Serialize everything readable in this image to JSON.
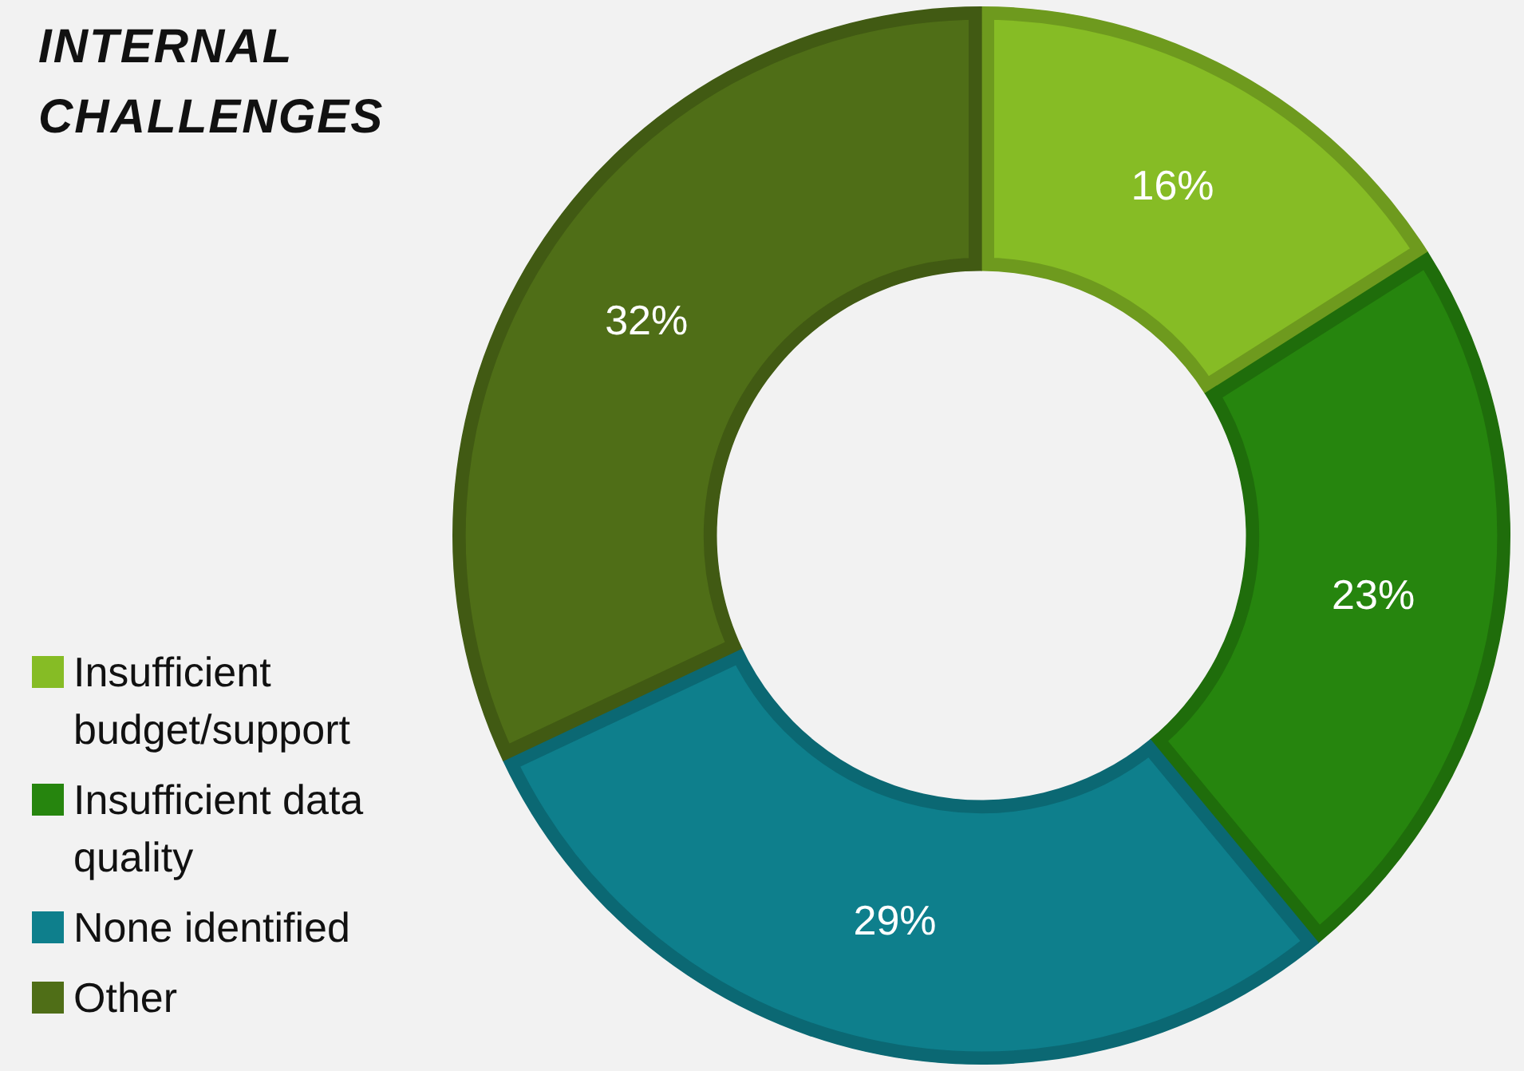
{
  "chart_data": {
    "type": "donut",
    "title": "INTERNAL CHALLENGES",
    "categories": [
      "Insufficient budget/support",
      "Insufficient data quality",
      "None identified",
      "Other"
    ],
    "values": [
      16,
      23,
      29,
      32
    ],
    "colors": [
      "#86bc25",
      "#26850e",
      "#0e7f8c",
      "#4f6e17"
    ],
    "value_labels": [
      "16%",
      "23%",
      "29%",
      "32%"
    ],
    "legend": "bottom left"
  }
}
